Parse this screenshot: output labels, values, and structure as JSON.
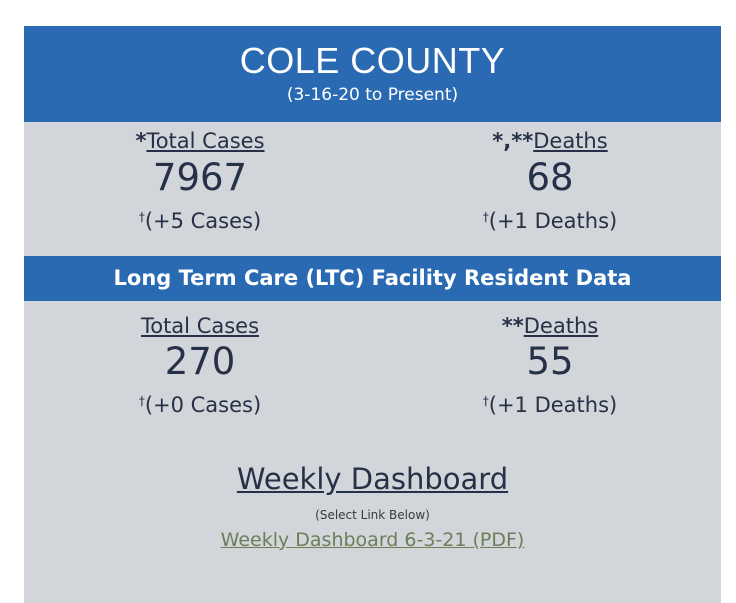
{
  "header": {
    "title": "COLE COUNTY",
    "subtitle": "(3-16-20 to Present)"
  },
  "county": {
    "cases_mark": "*",
    "cases_label": "Total Cases",
    "cases_value": "7967",
    "cases_change": "(+5 Cases)",
    "deaths_mark": "*,**",
    "deaths_label": "Deaths",
    "deaths_value": "68",
    "deaths_change": "(+1 Deaths)"
  },
  "ltc": {
    "band_title": "Long Term Care (LTC) Facility Resident Data",
    "cases_label": "Total Cases",
    "cases_value": "270",
    "cases_change": "(+0 Cases)",
    "deaths_mark": "**",
    "deaths_label": "Deaths",
    "deaths_value": "55",
    "deaths_change": "(+1 Deaths)"
  },
  "footnote_symbol": "†",
  "dashboard": {
    "title": "Weekly Dashboard",
    "note": "(Select Link Below)",
    "link": "Weekly Dashboard 6-3-21 (PDF)"
  },
  "colors": {
    "header_blue": "#2a6ab3",
    "panel_gray": "#d2d5d9",
    "text_navy": "#263148",
    "link_green": "#6c7f58"
  }
}
